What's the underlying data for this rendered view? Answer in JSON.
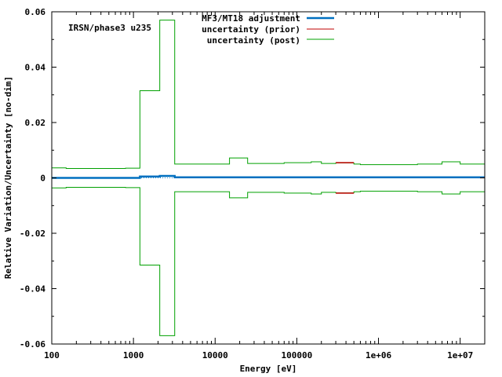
{
  "chart_data": {
    "type": "line",
    "title": "",
    "annotation": "IRSN/phase3 u235",
    "xlabel": "Energy [eV]",
    "ylabel": "Relative Variation/Uncertainty [no-dim]",
    "xscale": "log",
    "xlim": [
      100,
      20000000
    ],
    "ylim": [
      -0.06,
      0.06
    ],
    "x_ticks": [
      {
        "value": 100,
        "label": "100"
      },
      {
        "value": 1000,
        "label": "1000"
      },
      {
        "value": 10000,
        "label": "10000"
      },
      {
        "value": 100000,
        "label": "100000"
      },
      {
        "value": 1000000,
        "label": "1e+06"
      },
      {
        "value": 10000000,
        "label": "1e+07"
      }
    ],
    "y_ticks": [
      {
        "value": -0.06,
        "label": "-0.06"
      },
      {
        "value": -0.04,
        "label": "-0.04"
      },
      {
        "value": -0.02,
        "label": "-0.02"
      },
      {
        "value": 0,
        "label": "0"
      },
      {
        "value": 0.02,
        "label": "0.02"
      },
      {
        "value": 0.04,
        "label": "0.04"
      },
      {
        "value": 0.06,
        "label": "0.06"
      }
    ],
    "grid": false,
    "legend_position": "top",
    "series": [
      {
        "name": "MF3/MT18 adjustment",
        "color": "#0070c0",
        "style": "step",
        "edges": [
          100,
          1200,
          2100,
          3200,
          20000000
        ],
        "values": [
          0.0,
          0.0005,
          0.0007,
          0.0002
        ]
      },
      {
        "name": "uncertainty (prior)",
        "color": "#c00000",
        "style": "step-symmetric",
        "edges": [
          300000,
          500000
        ],
        "values": [
          0.0055
        ]
      },
      {
        "name": "uncertainty (post)",
        "color": "#00a000",
        "style": "step-symmetric",
        "edges": [
          100,
          150,
          800,
          1200,
          2100,
          3200,
          15000,
          25000,
          70000,
          150000,
          200000,
          300000,
          500000,
          600000,
          3000000,
          6000000,
          10000000,
          20000000
        ],
        "values": [
          0.0036,
          0.0034,
          0.0035,
          0.0315,
          0.057,
          0.005,
          0.0072,
          0.0052,
          0.0055,
          0.0058,
          0.0052,
          0.0054,
          0.005,
          0.0048,
          0.005,
          0.0058,
          0.005
        ]
      }
    ],
    "zero_line": {
      "style": "dotted",
      "color": "#0070c0"
    }
  }
}
